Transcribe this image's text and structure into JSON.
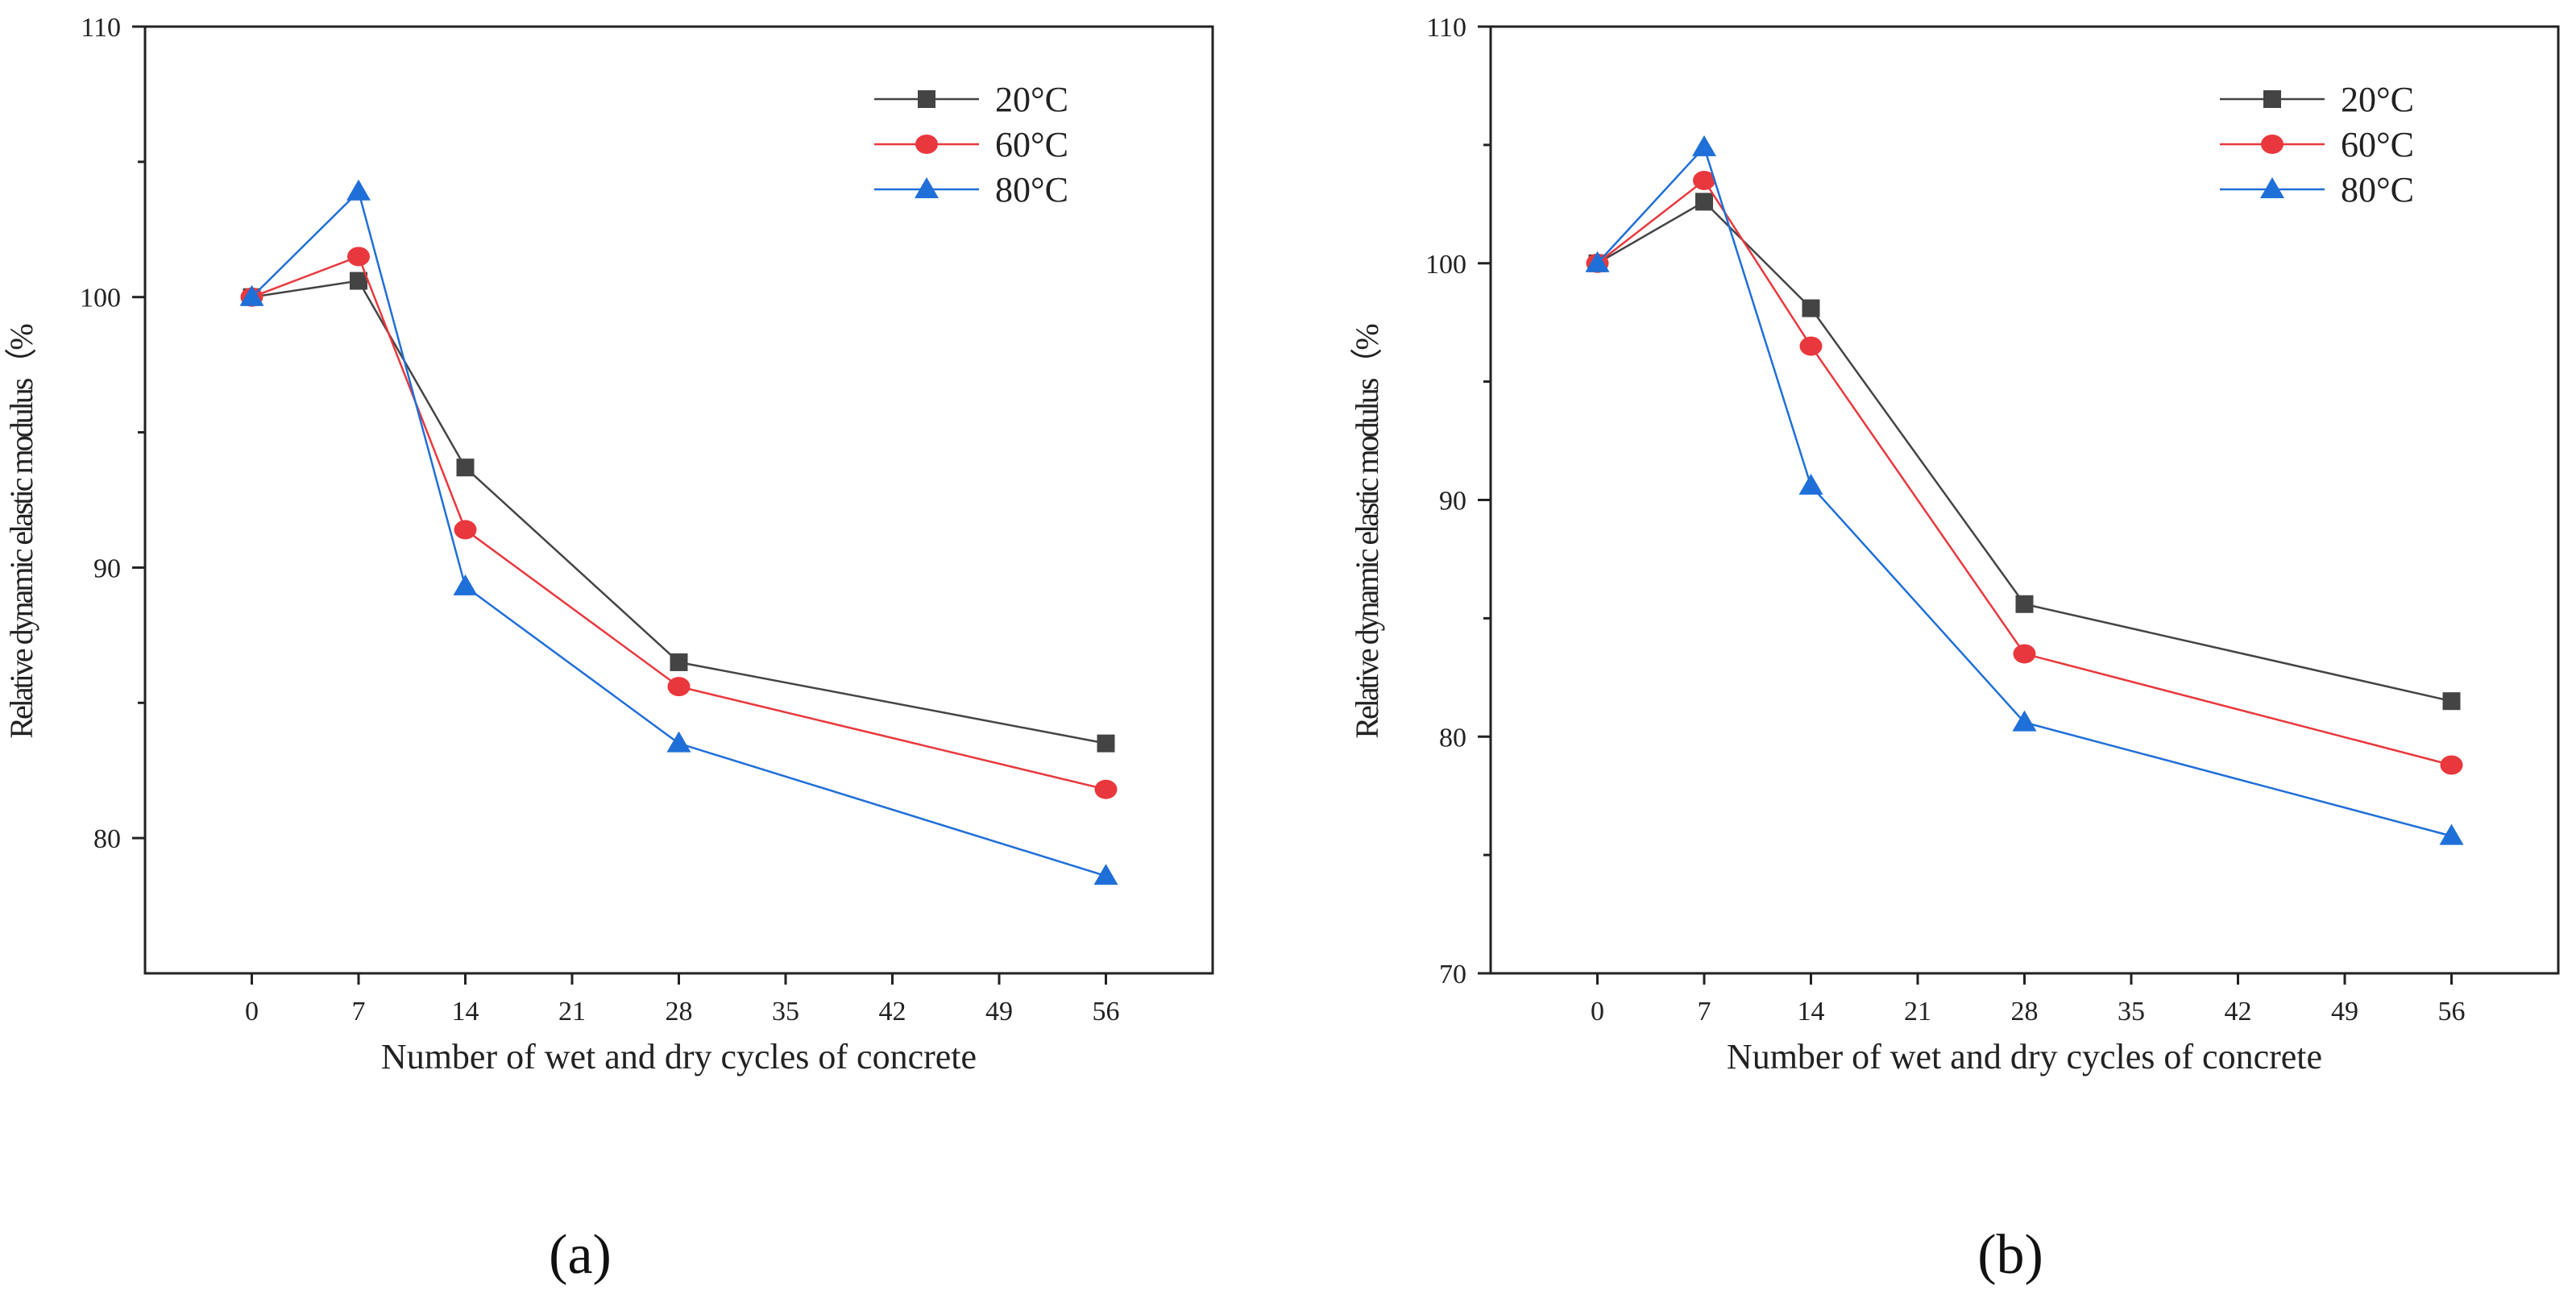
{
  "chart_data": [
    {
      "type": "line",
      "panel_label": "(a)",
      "xlabel": "Number of wet and dry cycles of concrete",
      "ylabel": "Relative dynamic elastic modulus（%",
      "xlim": [
        -7,
        63
      ],
      "ylim": [
        75,
        110
      ],
      "xticks": [
        0,
        7,
        14,
        21,
        28,
        35,
        42,
        49,
        56
      ],
      "yticks": [
        80,
        90,
        100,
        110
      ],
      "yminor": [
        85,
        95,
        105
      ],
      "legend": "top-right",
      "series": [
        {
          "name": "20°C",
          "color": "#444444",
          "marker": "square",
          "x": [
            0,
            7,
            14,
            28,
            56
          ],
          "values": [
            100,
            100.6,
            93.7,
            86.5,
            83.5
          ]
        },
        {
          "name": "60°C",
          "color": "#e8383d",
          "marker": "circle",
          "x": [
            0,
            7,
            14,
            28,
            56
          ],
          "values": [
            100,
            101.5,
            91.4,
            85.6,
            81.8
          ]
        },
        {
          "name": "80°C",
          "color": "#1f6fd8",
          "marker": "triangle",
          "x": [
            0,
            7,
            14,
            28,
            56
          ],
          "values": [
            100,
            103.9,
            89.3,
            83.5,
            78.6
          ]
        }
      ]
    },
    {
      "type": "line",
      "panel_label": "(b)",
      "xlabel": "Number of wet and dry cycles of concrete",
      "ylabel": "Relative dynamic elastic modulus（%",
      "xlim": [
        -7,
        63
      ],
      "ylim": [
        70,
        110
      ],
      "xticks": [
        0,
        7,
        14,
        21,
        28,
        35,
        42,
        49,
        56
      ],
      "yticks": [
        70,
        80,
        90,
        100,
        110
      ],
      "yminor": [
        75,
        85,
        95,
        105
      ],
      "legend": "top-right",
      "series": [
        {
          "name": "20°C",
          "color": "#444444",
          "marker": "square",
          "x": [
            0,
            7,
            14,
            28,
            56
          ],
          "values": [
            100,
            102.6,
            98.1,
            85.6,
            81.5
          ]
        },
        {
          "name": "60°C",
          "color": "#e8383d",
          "marker": "circle",
          "x": [
            0,
            7,
            14,
            28,
            56
          ],
          "values": [
            100,
            103.5,
            96.5,
            83.5,
            78.8
          ]
        },
        {
          "name": "80°C",
          "color": "#1f6fd8",
          "marker": "triangle",
          "x": [
            0,
            7,
            14,
            28,
            56
          ],
          "values": [
            100,
            104.9,
            90.6,
            80.6,
            75.8
          ]
        }
      ]
    }
  ]
}
